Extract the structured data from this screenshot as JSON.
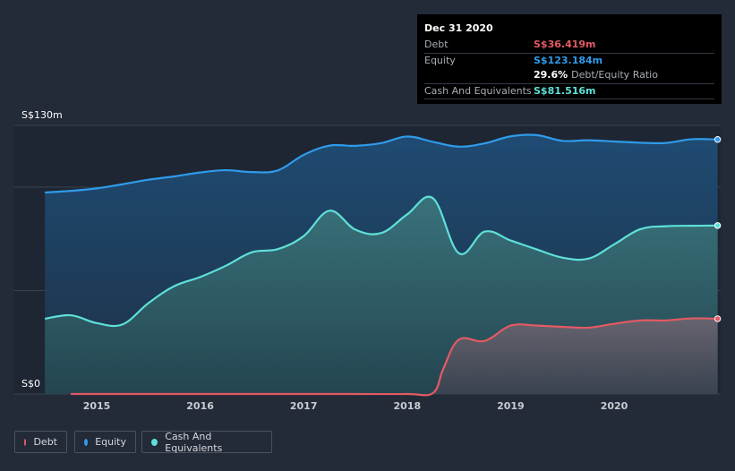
{
  "colors": {
    "background": "#232a38",
    "debt": "#e25a63",
    "equity": "#2f9bea",
    "cash": "#5ee0d8"
  },
  "tooltip": {
    "date": "Dec 31 2020",
    "debt_label": "Debt",
    "debt_value": "S$36.419m",
    "equity_label": "Equity",
    "equity_value": "S$123.184m",
    "ratio_value": "29.6%",
    "ratio_label": "Debt/Equity Ratio",
    "cash_label": "Cash And Equivalents",
    "cash_value": "S$81.516m"
  },
  "legend": {
    "debt": "Debt",
    "equity": "Equity",
    "cash": "Cash And Equivalents"
  },
  "chart_data": {
    "type": "area",
    "title": "",
    "xlabel": "",
    "ylabel": "",
    "currency": "S$",
    "y_unit": "m",
    "ylim": [
      0,
      130
    ],
    "xlim": [
      2014.5,
      2021.0
    ],
    "y_tick_labels": [
      "S$0",
      "S$130m"
    ],
    "x_tick_values": [
      2015,
      2016,
      2017,
      2018,
      2019,
      2020
    ],
    "x_tick_labels": [
      "2015",
      "2016",
      "2017",
      "2018",
      "2019",
      "2020"
    ],
    "series": [
      {
        "name": "Equity",
        "key": "equity",
        "x": [
          2014.5,
          2014.75,
          2015.0,
          2015.25,
          2015.5,
          2015.75,
          2016.0,
          2016.25,
          2016.5,
          2016.75,
          2017.0,
          2017.25,
          2017.5,
          2017.75,
          2018.0,
          2018.25,
          2018.5,
          2018.75,
          2019.0,
          2019.25,
          2019.5,
          2019.75,
          2020.0,
          2020.25,
          2020.5,
          2020.75,
          2021.0
        ],
        "values": [
          97.5,
          98.3,
          99.5,
          101.5,
          103.7,
          105.3,
          107.2,
          108.3,
          107.4,
          108.2,
          115.7,
          120.2,
          120.1,
          121.4,
          124.6,
          122.0,
          119.7,
          121.3,
          124.7,
          125.3,
          122.5,
          122.8,
          122.2,
          121.6,
          121.5,
          123.3,
          123.184
        ]
      },
      {
        "name": "Cash And Equivalents",
        "key": "cash",
        "x": [
          2014.5,
          2014.75,
          2015.0,
          2015.25,
          2015.5,
          2015.75,
          2016.0,
          2016.25,
          2016.5,
          2016.75,
          2017.0,
          2017.25,
          2017.5,
          2017.75,
          2018.0,
          2018.25,
          2018.5,
          2018.75,
          2019.0,
          2019.25,
          2019.5,
          2019.75,
          2020.0,
          2020.25,
          2020.5,
          2020.75,
          2021.0
        ],
        "values": [
          36.4,
          38.1,
          34.3,
          33.7,
          44.0,
          52.2,
          56.6,
          62.1,
          68.6,
          70.1,
          76.4,
          88.7,
          79.5,
          77.9,
          86.9,
          94.7,
          68.1,
          78.6,
          74.3,
          70.0,
          66.0,
          65.5,
          72.4,
          79.7,
          81.2,
          81.4,
          81.516
        ]
      },
      {
        "name": "Debt",
        "key": "debt",
        "x": [
          2014.75,
          2015.0,
          2015.5,
          2016.0,
          2016.5,
          2017.0,
          2017.5,
          2018.0,
          2018.25,
          2018.35,
          2018.5,
          2018.75,
          2019.0,
          2019.25,
          2019.5,
          2019.75,
          2020.0,
          2020.25,
          2020.5,
          2020.75,
          2021.0
        ],
        "values": [
          0.0,
          0.0,
          0.0,
          0.0,
          0.0,
          0.0,
          0.0,
          0.0,
          0.5,
          12.3,
          26.3,
          25.7,
          33.1,
          33.1,
          32.5,
          32.1,
          34.0,
          35.6,
          35.6,
          36.6,
          36.419
        ]
      }
    ]
  }
}
